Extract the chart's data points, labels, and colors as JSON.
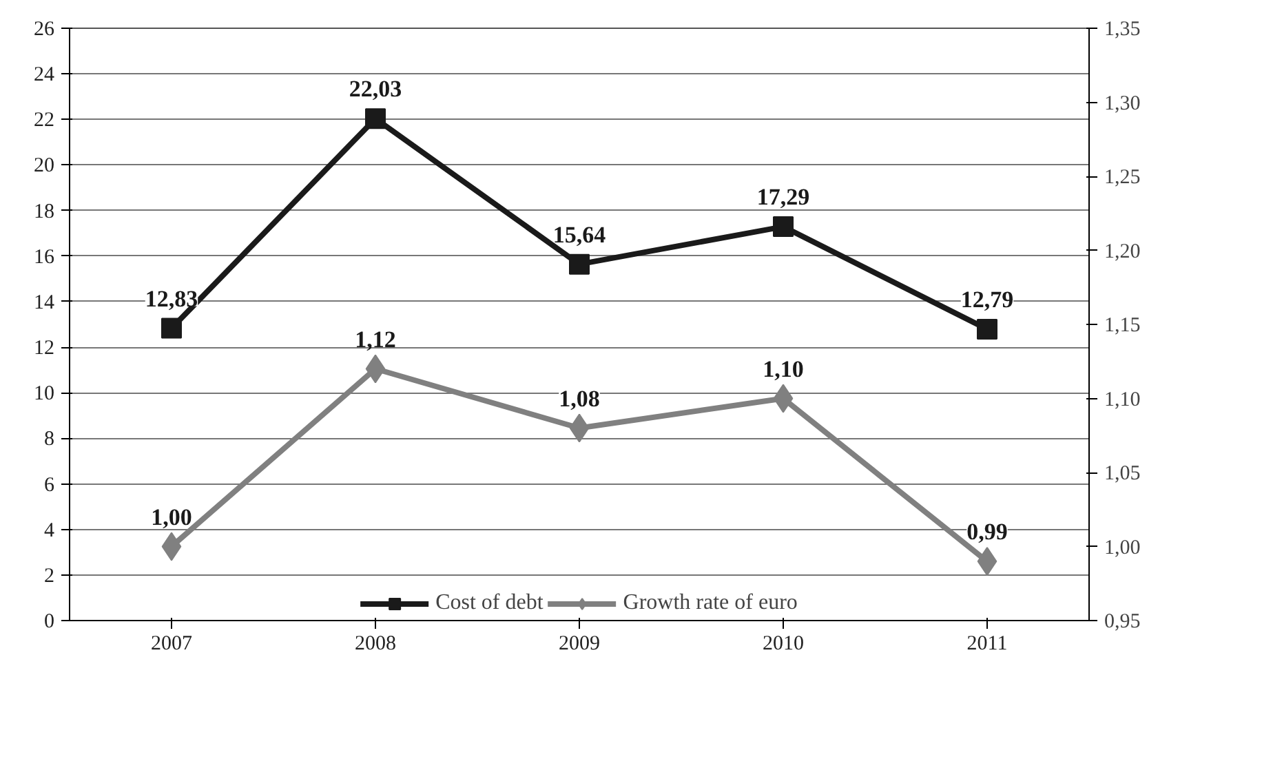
{
  "chart_data": {
    "type": "line",
    "categories": [
      "2007",
      "2008",
      "2009",
      "2010",
      "2011"
    ],
    "series": [
      {
        "name": "Cost of debt",
        "color": "#1a1a1a",
        "values": [
          12.83,
          22.03,
          15.64,
          17.29,
          12.79
        ],
        "value_labels": [
          "12,83",
          "22,03",
          "15,64",
          "17,29",
          "12,79"
        ],
        "marker": "square"
      },
      {
        "name": "Growth rate of euro",
        "color": "#808080",
        "values": [
          1.0,
          1.12,
          1.08,
          1.1,
          0.99
        ],
        "value_labels": [
          "1,00",
          "1,12",
          "1,08",
          "1,10",
          "0,99"
        ],
        "marker": "diamond",
        "axis": "y2"
      }
    ],
    "ylim": [
      0,
      26
    ],
    "yticks": [
      0,
      2,
      4,
      6,
      8,
      10,
      12,
      14,
      16,
      18,
      20,
      22,
      24,
      26
    ],
    "y2lim": [
      0.95,
      1.35
    ],
    "y2ticks": [
      {
        "value": 0.95,
        "label": "0,95"
      },
      {
        "value": 1.0,
        "label": "1,00"
      },
      {
        "value": 1.05,
        "label": "1,05"
      },
      {
        "value": 1.1,
        "label": "1,10"
      },
      {
        "value": 1.15,
        "label": "1,15"
      },
      {
        "value": 1.2,
        "label": "1,20"
      },
      {
        "value": 1.25,
        "label": "1,25"
      },
      {
        "value": 1.3,
        "label": "1,30"
      },
      {
        "value": 1.35,
        "label": "1,35"
      }
    ],
    "grid": "y",
    "legend": "bottom",
    "line_style": "solid"
  }
}
